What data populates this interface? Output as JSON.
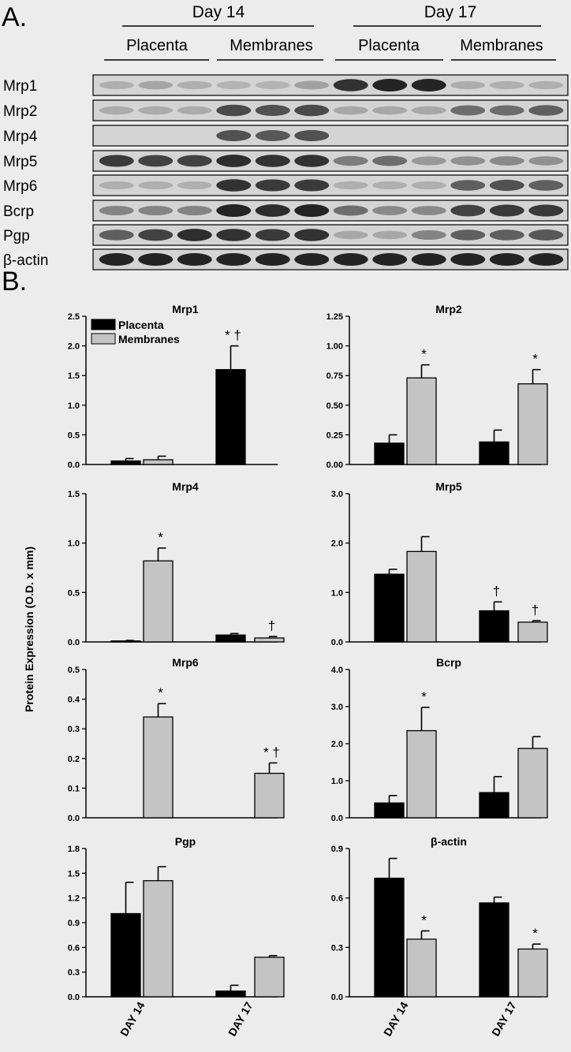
{
  "panel_a": {
    "label": "A.",
    "days": [
      "Day 14",
      "Day 17"
    ],
    "tissues": [
      "Placenta",
      "Membranes",
      "Placenta",
      "Membranes"
    ],
    "rows": [
      "Mrp1",
      "Mrp2",
      "Mrp4",
      "Mrp5",
      "Mrp6",
      "Bcrp",
      "Pgp",
      "β-actin"
    ]
  },
  "panel_b": {
    "label": "B.",
    "ylabel": "Protein Expression  (O.D. x mm)",
    "legend": [
      "Placenta",
      "Membranes"
    ],
    "x_categories": [
      "DAY 14",
      "DAY 17"
    ]
  },
  "colors": {
    "placenta": "#000000",
    "membranes": "#c4c4c4",
    "background": "#ececec"
  },
  "chart_data": [
    {
      "type": "bar",
      "title": "Mrp1",
      "categories": [
        "DAY 14",
        "DAY 17"
      ],
      "ylim": [
        0,
        2.5
      ],
      "yticks": [
        "0.0",
        "0.5",
        "1.0",
        "1.5",
        "2.0",
        "2.5"
      ],
      "legend_position": "top-left",
      "series": [
        {
          "name": "Placenta",
          "values": [
            0.06,
            1.6
          ],
          "errors": [
            0.04,
            0.4
          ]
        },
        {
          "name": "Membranes",
          "values": [
            0.08,
            0.0
          ],
          "errors": [
            0.06,
            0.0
          ]
        }
      ],
      "annotations": [
        {
          "text": "* †",
          "category": "DAY 17",
          "series": "Placenta"
        }
      ]
    },
    {
      "type": "bar",
      "title": "Mrp2",
      "categories": [
        "DAY 14",
        "DAY 17"
      ],
      "ylim": [
        0,
        1.25
      ],
      "yticks": [
        "0.00",
        "0.25",
        "0.50",
        "0.75",
        "1.00",
        "1.25"
      ],
      "series": [
        {
          "name": "Placenta",
          "values": [
            0.18,
            0.19
          ],
          "errors": [
            0.07,
            0.1
          ]
        },
        {
          "name": "Membranes",
          "values": [
            0.73,
            0.68
          ],
          "errors": [
            0.11,
            0.12
          ]
        }
      ],
      "annotations": [
        {
          "text": "*",
          "category": "DAY 14",
          "series": "Membranes"
        },
        {
          "text": "*",
          "category": "DAY 17",
          "series": "Membranes"
        }
      ]
    },
    {
      "type": "bar",
      "title": "Mrp4",
      "categories": [
        "DAY 14",
        "DAY 17"
      ],
      "ylim": [
        0,
        1.5
      ],
      "yticks": [
        "0.0",
        "0.5",
        "1.0",
        "1.5"
      ],
      "series": [
        {
          "name": "Placenta",
          "values": [
            0.01,
            0.07
          ],
          "errors": [
            0.005,
            0.015
          ]
        },
        {
          "name": "Membranes",
          "values": [
            0.82,
            0.04
          ],
          "errors": [
            0.13,
            0.015
          ]
        }
      ],
      "annotations": [
        {
          "text": "*",
          "category": "DAY 14",
          "series": "Membranes"
        },
        {
          "text": "†",
          "category": "DAY 17",
          "series": "Membranes"
        }
      ]
    },
    {
      "type": "bar",
      "title": "Mrp5",
      "categories": [
        "DAY 14",
        "DAY 17"
      ],
      "ylim": [
        0,
        3.0
      ],
      "yticks": [
        "0.0",
        "1.0",
        "2.0",
        "3.0"
      ],
      "series": [
        {
          "name": "Placenta",
          "values": [
            1.37,
            0.63
          ],
          "errors": [
            0.1,
            0.18
          ]
        },
        {
          "name": "Membranes",
          "values": [
            1.83,
            0.4
          ],
          "errors": [
            0.3,
            0.03
          ]
        }
      ],
      "annotations": [
        {
          "text": "†",
          "category": "DAY 17",
          "series": "Placenta"
        },
        {
          "text": "†",
          "category": "DAY 17",
          "series": "Membranes"
        }
      ]
    },
    {
      "type": "bar",
      "title": "Mrp6",
      "categories": [
        "DAY 14",
        "DAY 17"
      ],
      "ylim": [
        0,
        0.5
      ],
      "yticks": [
        "0.0",
        "0.1",
        "0.2",
        "0.3",
        "0.4",
        "0.5"
      ],
      "series": [
        {
          "name": "Placenta",
          "values": [
            0.0,
            0.0
          ],
          "errors": [
            0.0,
            0.0
          ]
        },
        {
          "name": "Membranes",
          "values": [
            0.34,
            0.15
          ],
          "errors": [
            0.045,
            0.035
          ]
        }
      ],
      "annotations": [
        {
          "text": "*",
          "category": "DAY 14",
          "series": "Membranes"
        },
        {
          "text": "* †",
          "category": "DAY 17",
          "series": "Membranes"
        }
      ]
    },
    {
      "type": "bar",
      "title": "Bcrp",
      "categories": [
        "DAY 14",
        "DAY 17"
      ],
      "ylim": [
        0,
        4.0
      ],
      "yticks": [
        "0.0",
        "1.0",
        "2.0",
        "3.0",
        "4.0"
      ],
      "series": [
        {
          "name": "Placenta",
          "values": [
            0.4,
            0.68
          ],
          "errors": [
            0.2,
            0.43
          ]
        },
        {
          "name": "Membranes",
          "values": [
            2.35,
            1.87
          ],
          "errors": [
            0.63,
            0.32
          ]
        }
      ],
      "annotations": [
        {
          "text": "*",
          "category": "DAY 14",
          "series": "Membranes"
        }
      ]
    },
    {
      "type": "bar",
      "title": "Pgp",
      "categories": [
        "DAY 14",
        "DAY 17"
      ],
      "ylim": [
        0,
        1.8
      ],
      "yticks": [
        "0.0",
        "0.3",
        "0.6",
        "0.9",
        "1.2",
        "1.5",
        "1.8"
      ],
      "series": [
        {
          "name": "Placenta",
          "values": [
            1.01,
            0.07
          ],
          "errors": [
            0.38,
            0.07
          ]
        },
        {
          "name": "Membranes",
          "values": [
            1.41,
            0.48
          ],
          "errors": [
            0.17,
            0.02
          ]
        }
      ],
      "annotations": []
    },
    {
      "type": "bar",
      "title": "β-actin",
      "categories": [
        "DAY 14",
        "DAY 17"
      ],
      "ylim": [
        0,
        0.9
      ],
      "yticks": [
        "0.0",
        "0.3",
        "0.6",
        "0.9"
      ],
      "series": [
        {
          "name": "Placenta",
          "values": [
            0.72,
            0.57
          ],
          "errors": [
            0.12,
            0.035
          ]
        },
        {
          "name": "Membranes",
          "values": [
            0.35,
            0.29
          ],
          "errors": [
            0.05,
            0.03
          ]
        }
      ],
      "annotations": [
        {
          "text": "*",
          "category": "DAY 14",
          "series": "Membranes"
        },
        {
          "text": "*",
          "category": "DAY 17",
          "series": "Membranes"
        }
      ]
    }
  ]
}
